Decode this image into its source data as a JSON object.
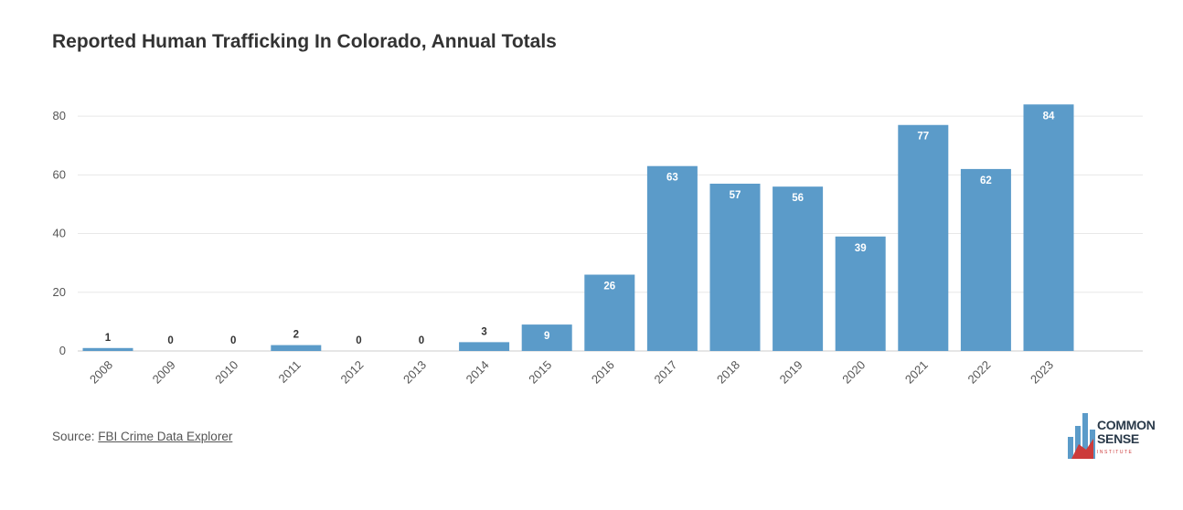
{
  "title": "Reported Human Trafficking In Colorado, Annual Totals",
  "source": {
    "prefix": "Source: ",
    "link_text": "FBI Crime Data Explorer"
  },
  "logo": {
    "line1": "COMMON",
    "line2": "SENSE",
    "line3": "INSTITUTE"
  },
  "colors": {
    "bar": "#5b9bc9",
    "grid": "#e8e8e8",
    "axis_text": "#555555",
    "label_text": "#333333",
    "inside_label": "#ffffff"
  },
  "chart_data": {
    "type": "bar",
    "title": "Reported Human Trafficking In Colorado, Annual Totals",
    "xlabel": "",
    "ylabel": "",
    "ylim": [
      0,
      90
    ],
    "yticks": [
      0,
      20,
      40,
      60,
      80
    ],
    "categories": [
      "2008",
      "2009",
      "2010",
      "2011",
      "2012",
      "2013",
      "2014",
      "2015",
      "2016",
      "2017",
      "2018",
      "2019",
      "2020",
      "2021",
      "2022",
      "2023"
    ],
    "values": [
      1,
      0,
      0,
      2,
      0,
      0,
      3,
      9,
      26,
      63,
      57,
      56,
      39,
      77,
      62,
      84
    ],
    "grid": true
  }
}
